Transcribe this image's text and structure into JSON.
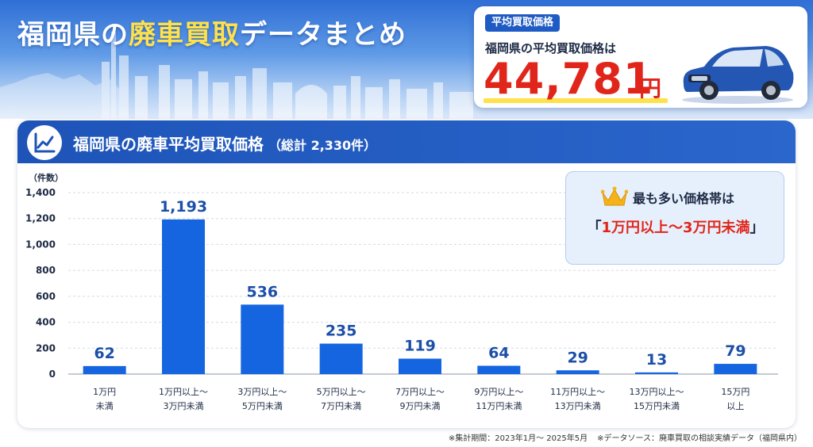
{
  "header": {
    "title_pre": "福岡県の",
    "title_highlight": "廃車買取",
    "title_post": "データまとめ"
  },
  "average_card": {
    "tag": "平均買取価格",
    "subtitle": "福岡県の平均買取価格は",
    "value": "44,781",
    "unit": "円"
  },
  "panel": {
    "title": "福岡県の廃車平均買取価格",
    "total": "（総計 2,330件）"
  },
  "highlight": {
    "label": "最も多い価格帯は",
    "open": "「",
    "value": "1万円以上〜3万円未満",
    "close": "」"
  },
  "footnotes": {
    "period": "※集計期間：2023年1月〜 2025年5月",
    "source": "※データソース：廃車買取の相談実績データ（福岡県内）"
  },
  "colors": {
    "bar": "#1565e0",
    "value_label": "#1c4fa8",
    "accent_red": "#e0261b",
    "header_blue": "#1e54b8"
  },
  "chart_data": {
    "type": "bar",
    "ylabel": "（件数）",
    "ylim": [
      0,
      1400
    ],
    "yticks": [
      0,
      200,
      400,
      600,
      800,
      1000,
      1200,
      1400
    ],
    "ytick_labels": [
      "0",
      "200",
      "400",
      "600",
      "800",
      "1,000",
      "1,200",
      "1,400"
    ],
    "grid": true,
    "categories": [
      [
        "1万円",
        "未満"
      ],
      [
        "1万円以上〜",
        "3万円未満"
      ],
      [
        "3万円以上〜",
        "5万円未満"
      ],
      [
        "5万円以上〜",
        "7万円未満"
      ],
      [
        "7万円以上〜",
        "9万円未満"
      ],
      [
        "9万円以上〜",
        "11万円未満"
      ],
      [
        "11万円以上〜",
        "13万円未満"
      ],
      [
        "13万円以上〜",
        "15万円未満"
      ],
      [
        "15万円",
        "以上"
      ]
    ],
    "values": [
      62,
      1193,
      536,
      235,
      119,
      64,
      29,
      13,
      79
    ],
    "value_labels": [
      "62",
      "1,193",
      "536",
      "235",
      "119",
      "64",
      "29",
      "13",
      "79"
    ]
  }
}
